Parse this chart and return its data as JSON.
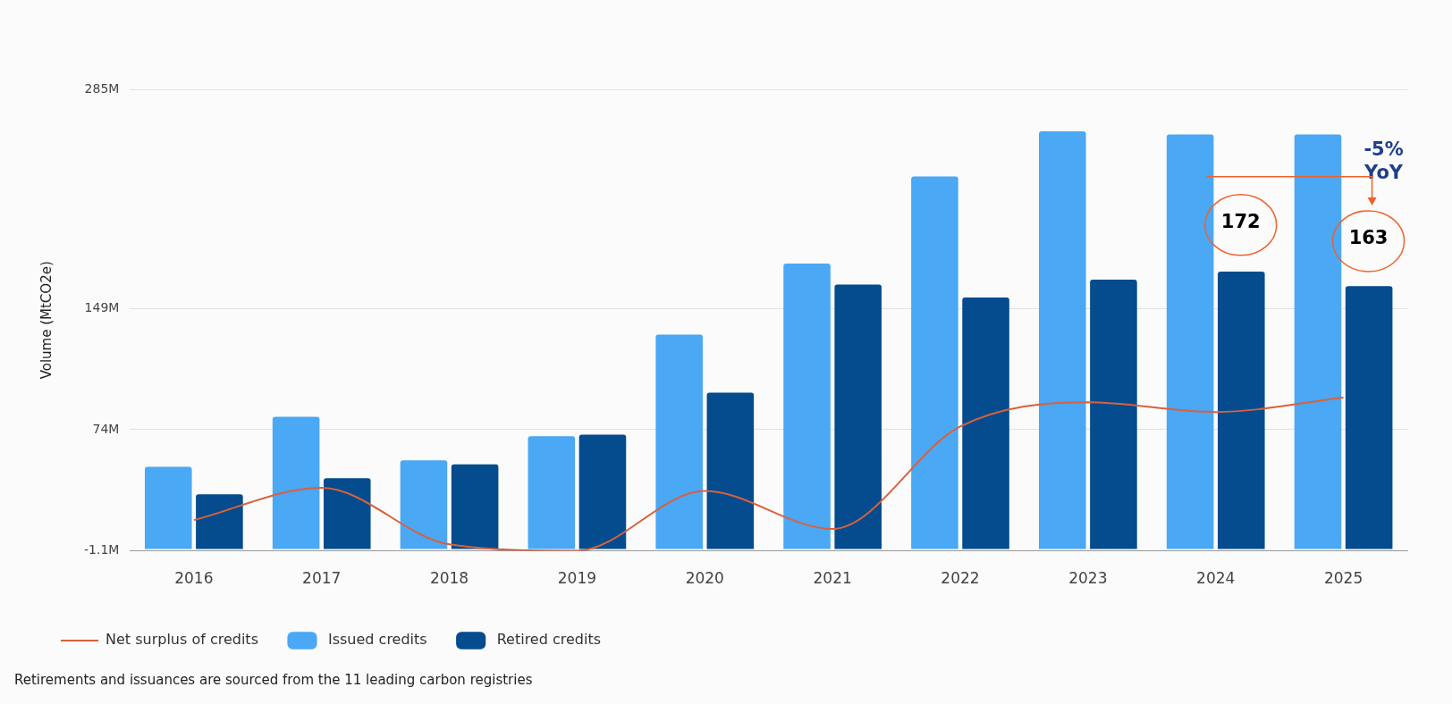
{
  "chart_data": {
    "type": "bar",
    "ylabel": "Volume (MtCO2e)",
    "categories": [
      "2016",
      "2017",
      "2018",
      "2019",
      "2020",
      "2021",
      "2022",
      "2023",
      "2024",
      "2025"
    ],
    "series": [
      {
        "name": "Issued credits",
        "color": "#4aa8f5",
        "values": [
          51,
          82,
          55,
          70,
          133,
          177,
          231,
          259,
          257,
          257
        ]
      },
      {
        "name": "Retired credits",
        "color": "#044c8e",
        "values": [
          34,
          44,
          52.5,
          71,
          97,
          164,
          156,
          167,
          172,
          163
        ]
      },
      {
        "name": "Net surplus of credits",
        "type": "line",
        "color": "#d9613c",
        "marker": "none",
        "line_style": "solid",
        "values": [
          18,
          38,
          3,
          -1,
          36,
          12.5,
          76,
          91,
          85,
          94
        ]
      }
    ],
    "ylim": [
      -1.1,
      285
    ],
    "yticks": [
      {
        "value": -1.1,
        "label": "-1.1M"
      },
      {
        "value": 74,
        "label": "74M"
      },
      {
        "value": 149,
        "label": "149M"
      },
      {
        "value": 285,
        "label": "285M"
      }
    ],
    "grid": "y",
    "legend": "bottom left",
    "annotations": [
      {
        "text": "172",
        "x": "2024",
        "y": 202
      },
      {
        "text": "163",
        "x": "2025",
        "y": 192
      },
      {
        "text": "-5% YoY",
        "x": "2025",
        "y": 240
      },
      "Retirements and issuances are sourced from the 11 leading carbon registries"
    ]
  }
}
